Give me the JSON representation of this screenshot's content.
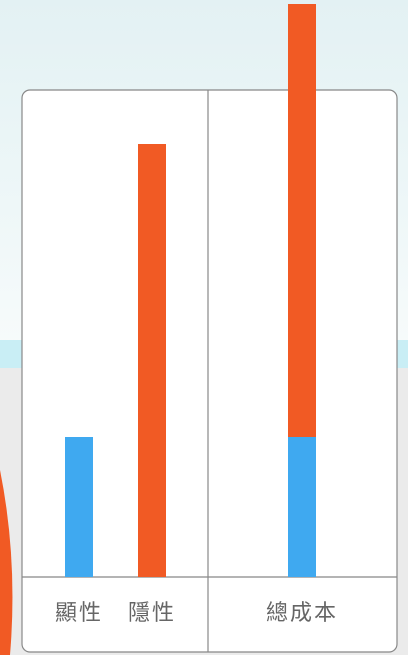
{
  "chart_data": {
    "type": "bar",
    "categories": [
      "顯性",
      "隱性",
      "總成本"
    ],
    "series": [
      {
        "color": "#3fa9f0",
        "values": [
          140,
          null,
          140
        ]
      },
      {
        "color": "#f15a24",
        "values": [
          null,
          433,
          433
        ]
      }
    ],
    "ylim": [
      0,
      573
    ]
  }
}
